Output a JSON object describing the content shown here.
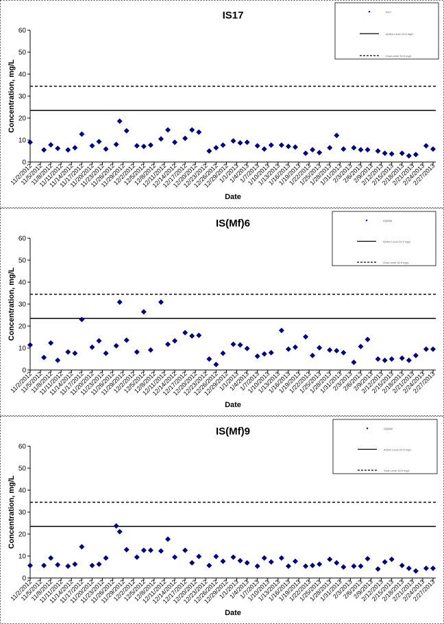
{
  "chart_data": [
    {
      "type": "scatter",
      "title": "IS17",
      "xlabel": "Date",
      "ylabel": "Concentration, mg/L",
      "xlim": [
        "11/2/2012",
        "2/27/2013"
      ],
      "xticks": [
        "11/2/2012",
        "11/5/2012",
        "11/8/2012",
        "11/11/2012",
        "11/14/2012",
        "11/17/2012",
        "11/20/2012",
        "11/23/2012",
        "11/26/2012",
        "11/29/2012",
        "12/2/2012",
        "12/5/2012",
        "12/8/2012",
        "12/11/2012",
        "12/14/2012",
        "12/17/2012",
        "12/20/2012",
        "12/23/2012",
        "12/26/2012",
        "12/29/2012",
        "1/1/2013",
        "1/4/2013",
        "1/7/2013",
        "1/10/2013",
        "1/13/2013",
        "1/16/2013",
        "1/19/2013",
        "1/22/2013",
        "1/25/2013",
        "1/28/2013",
        "1/31/2013",
        "2/3/2013",
        "2/6/2013",
        "2/9/2013",
        "2/12/2013",
        "2/15/2013",
        "2/18/2013",
        "2/21/2013",
        "2/24/2013",
        "2/27/2013"
      ],
      "ylim": [
        0,
        60
      ],
      "yticks": [
        0,
        10,
        20,
        30,
        40,
        50,
        60
      ],
      "legend": "upper right",
      "series": [
        {
          "name": "IS17",
          "color": "#00008b",
          "marker": "diamond",
          "x": [
            "11/2/2012",
            "11/6/2012",
            "11/8/2012",
            "11/10/2012",
            "11/13/2012",
            "11/15/2012",
            "11/17/2012",
            "11/20/2012",
            "11/22/2012",
            "11/24/2012",
            "11/27/2012",
            "11/28/2012",
            "11/30/2012",
            "12/3/2012",
            "12/5/2012",
            "12/7/2012",
            "12/10/2012",
            "12/12/2012",
            "12/14/2012",
            "12/17/2012",
            "12/19/2012",
            "12/21/2012",
            "12/24/2012",
            "12/26/2012",
            "12/28/2012",
            "12/31/2012",
            "1/2/2013",
            "1/4/2013",
            "1/7/2013",
            "1/9/2013",
            "1/11/2013",
            "1/14/2013",
            "1/16/2013",
            "1/18/2013",
            "1/21/2013",
            "1/23/2013",
            "1/25/2013",
            "1/28/2013",
            "1/30/2013",
            "2/1/2013",
            "2/4/2013",
            "2/6/2013",
            "2/8/2013",
            "2/11/2013",
            "2/13/2013",
            "2/15/2013",
            "2/18/2013",
            "2/20/2013",
            "2/22/2013",
            "2/25/2013",
            "2/27/2013"
          ],
          "values": [
            9,
            5.5,
            7.8,
            6.2,
            5.5,
            6.5,
            12.7,
            7.4,
            9.3,
            5.9,
            8,
            18.6,
            14.2,
            7.4,
            7.1,
            7.7,
            10.5,
            14.6,
            9,
            10.8,
            14.6,
            13.6,
            5,
            6.5,
            7.7,
            9.6,
            8.7,
            9,
            7.4,
            5.9,
            7.7,
            7.7,
            7.1,
            6.8,
            4,
            5.6,
            4.3,
            6.5,
            12.1,
            5.9,
            6.5,
            5.6,
            5.6,
            5,
            4,
            3.7,
            4,
            2.8,
            3.4,
            7.4,
            5.9
          ]
        }
      ],
      "reference_lines": [
        {
          "name": "Action Level 23.5 mg/L",
          "value": 23.5,
          "style": "solid",
          "color": "#000000"
        },
        {
          "name": "Goal Level 34.5 mg/L",
          "value": 34.5,
          "style": "dashed",
          "color": "#000000"
        }
      ]
    },
    {
      "type": "scatter",
      "title": "IS(Mf)6",
      "xlabel": "Date",
      "ylabel": "Concentration, mg/L",
      "xlim": [
        "11/2/2012",
        "2/27/2013"
      ],
      "xticks": [
        "11/2/2012",
        "11/5/2012",
        "11/8/2012",
        "11/11/2012",
        "11/14/2012",
        "11/17/2012",
        "11/20/2012",
        "11/23/2012",
        "11/26/2012",
        "11/29/2012",
        "12/2/2012",
        "12/5/2012",
        "12/8/2012",
        "12/11/2012",
        "12/14/2012",
        "12/17/2012",
        "12/20/2012",
        "12/23/2012",
        "12/26/2012",
        "12/29/2012",
        "1/1/2013",
        "1/4/2013",
        "1/7/2013",
        "1/10/2013",
        "1/13/2013",
        "1/16/2013",
        "1/19/2013",
        "1/22/2013",
        "1/25/2013",
        "1/28/2013",
        "1/31/2013",
        "2/3/2013",
        "2/6/2013",
        "2/9/2013",
        "2/12/2013",
        "2/15/2013",
        "2/18/2013",
        "2/21/2013",
        "2/24/2013",
        "2/27/2013"
      ],
      "ylim": [
        0,
        60
      ],
      "yticks": [
        0,
        10,
        20,
        30,
        40,
        50,
        60
      ],
      "legend": "upper right",
      "series": [
        {
          "name": "IS(Mf)6",
          "color": "#00008b",
          "marker": "diamond",
          "x": [
            "11/2/2012",
            "11/6/2012",
            "11/8/2012",
            "11/10/2012",
            "11/13/2012",
            "11/15/2012",
            "11/17/2012",
            "11/20/2012",
            "11/22/2012",
            "11/24/2012",
            "11/27/2012",
            "11/28/2012",
            "11/30/2012",
            "12/3/2012",
            "12/5/2012",
            "12/7/2012",
            "12/10/2012",
            "12/12/2012",
            "12/14/2012",
            "12/17/2012",
            "12/19/2012",
            "12/21/2012",
            "12/24/2012",
            "12/26/2012",
            "12/28/2012",
            "12/31/2012",
            "1/2/2013",
            "1/4/2013",
            "1/7/2013",
            "1/9/2013",
            "1/11/2013",
            "1/14/2013",
            "1/16/2013",
            "1/18/2013",
            "1/21/2013",
            "1/23/2013",
            "1/25/2013",
            "1/28/2013",
            "1/30/2013",
            "2/1/2013",
            "2/4/2013",
            "2/6/2013",
            "2/8/2013",
            "2/11/2013",
            "2/13/2013",
            "2/15/2013",
            "2/18/2013",
            "2/20/2013",
            "2/22/2013",
            "2/25/2013",
            "2/27/2013"
          ],
          "values": [
            11.4,
            5.7,
            12.3,
            4.4,
            8.2,
            7.6,
            23,
            10.4,
            13.3,
            7.6,
            11,
            30.9,
            13.6,
            8.2,
            26.5,
            9.1,
            30.9,
            11.7,
            13.3,
            17,
            15.5,
            15.8,
            5,
            2.5,
            7.6,
            11.7,
            11.4,
            9.8,
            6.3,
            7.3,
            7.9,
            18,
            9.5,
            10.4,
            15.1,
            6.6,
            10.1,
            9.1,
            8.8,
            7.9,
            3.5,
            10.7,
            13.9,
            5,
            4.4,
            5,
            5.4,
            4.4,
            6.6,
            9.5,
            9.5
          ]
        }
      ],
      "reference_lines": [
        {
          "name": "Action Level 23.5 mg/L",
          "value": 23.5,
          "style": "solid",
          "color": "#000000"
        },
        {
          "name": "Goal Level 34.5 mg/L",
          "value": 34.5,
          "style": "dashed",
          "color": "#000000"
        }
      ]
    },
    {
      "type": "scatter",
      "title": "IS(Mf)9",
      "xlabel": "Date",
      "ylabel": "Concentration, mg/L",
      "xlim": [
        "11/2/2012",
        "2/27/2013"
      ],
      "xticks": [
        "11/2/2012",
        "11/5/2012",
        "11/8/2012",
        "11/11/2012",
        "11/14/2012",
        "11/17/2012",
        "11/20/2012",
        "11/23/2012",
        "11/26/2012",
        "11/29/2012",
        "12/2/2012",
        "12/5/2012",
        "12/8/2012",
        "12/11/2012",
        "12/14/2012",
        "12/17/2012",
        "12/20/2012",
        "12/23/2012",
        "12/26/2012",
        "12/29/2012",
        "1/1/2013",
        "1/4/2013",
        "1/7/2013",
        "1/10/2013",
        "1/13/2013",
        "1/16/2013",
        "1/19/2013",
        "1/22/2013",
        "1/25/2013",
        "1/28/2013",
        "1/31/2013",
        "2/3/2013",
        "2/6/2013",
        "2/9/2013",
        "2/12/2013",
        "2/15/2013",
        "2/18/2013",
        "2/21/2013",
        "2/24/2013",
        "2/27/2013"
      ],
      "ylim": [
        0,
        60
      ],
      "yticks": [
        0,
        10,
        20,
        30,
        40,
        50,
        60
      ],
      "legend": "upper right",
      "series": [
        {
          "name": "IS(Mf)9",
          "color": "#00008b",
          "marker": "diamond",
          "x": [
            "11/2/2012",
            "11/6/2012",
            "11/8/2012",
            "11/10/2012",
            "11/13/2012",
            "11/15/2012",
            "11/17/2012",
            "11/20/2012",
            "11/22/2012",
            "11/24/2012",
            "11/27/2012",
            "11/28/2012",
            "11/30/2012",
            "12/3/2012",
            "12/5/2012",
            "12/7/2012",
            "12/10/2012",
            "12/12/2012",
            "12/14/2012",
            "12/17/2012",
            "12/19/2012",
            "12/21/2012",
            "12/24/2012",
            "12/26/2012",
            "12/28/2012",
            "12/31/2012",
            "1/2/2013",
            "1/4/2013",
            "1/7/2013",
            "1/9/2013",
            "1/11/2013",
            "1/14/2013",
            "1/16/2013",
            "1/18/2013",
            "1/21/2013",
            "1/23/2013",
            "1/25/2013",
            "1/28/2013",
            "1/30/2013",
            "2/1/2013",
            "2/4/2013",
            "2/6/2013",
            "2/8/2013",
            "2/11/2013",
            "2/13/2013",
            "2/15/2013",
            "2/18/2013",
            "2/20/2013",
            "2/22/2013",
            "2/25/2013",
            "2/27/2013"
          ],
          "values": [
            5.7,
            5.7,
            9.1,
            6,
            5.4,
            6.3,
            14.2,
            5.7,
            6.3,
            9.1,
            23.7,
            21.1,
            12.9,
            9.5,
            12.6,
            12.6,
            12.3,
            17.7,
            9.5,
            12.6,
            6.9,
            9.8,
            5.7,
            9.8,
            7.6,
            9.5,
            7.9,
            6.9,
            5.4,
            9.1,
            7.3,
            9.1,
            5.4,
            7.6,
            5.4,
            5.7,
            6.3,
            8.5,
            6.9,
            5,
            5.4,
            5.4,
            8.8,
            4.1,
            7.3,
            8.5,
            5.7,
            4.4,
            3.2,
            4.4,
            4.4
          ]
        }
      ],
      "reference_lines": [
        {
          "name": "Action Level 23.5 mg/L",
          "value": 23.5,
          "style": "solid",
          "color": "#000000"
        },
        {
          "name": "Goal Level 34.5 mg/L",
          "value": 34.5,
          "style": "dashed",
          "color": "#000000"
        }
      ]
    }
  ]
}
